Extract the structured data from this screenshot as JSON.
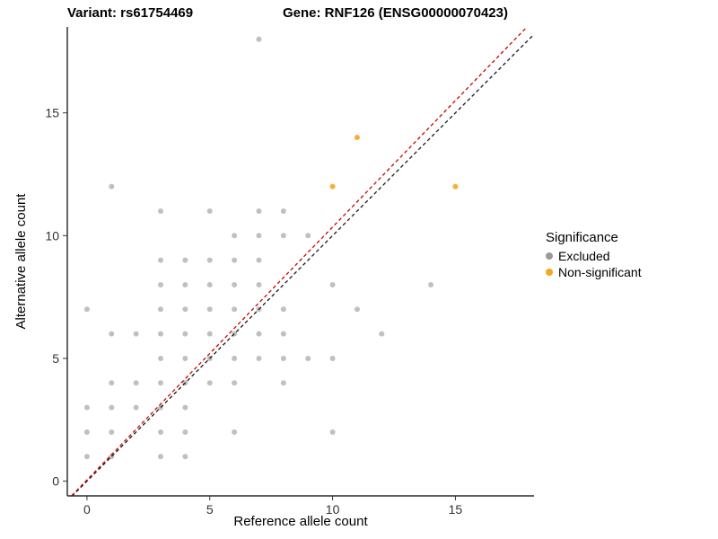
{
  "titles": {
    "variant": "Variant: rs61754469",
    "gene": "Gene: RNF126 (ENSG00000070423)"
  },
  "chart_data": {
    "type": "scatter",
    "xlabel": "Reference allele count",
    "ylabel": "Alternative allele count",
    "xlim": [
      -0.8,
      18.2
    ],
    "ylim": [
      -0.6,
      18.5
    ],
    "xticks": [
      0,
      5,
      10,
      15
    ],
    "yticks": [
      0,
      5,
      10,
      15
    ],
    "grid": false,
    "legend": {
      "title": "Significance",
      "position": "right",
      "entries": [
        {
          "label": "Excluded",
          "color": "#999999"
        },
        {
          "label": "Non-significant",
          "color": "#F5A623"
        }
      ]
    },
    "series": [
      {
        "name": "Excluded",
        "color": "#8c8c8c",
        "opacity": 0.55,
        "points": [
          [
            0,
            1
          ],
          [
            0,
            2
          ],
          [
            0,
            3
          ],
          [
            0,
            7
          ],
          [
            1,
            1
          ],
          [
            1,
            2
          ],
          [
            1,
            3
          ],
          [
            1,
            4
          ],
          [
            1,
            6
          ],
          [
            1,
            12
          ],
          [
            2,
            3
          ],
          [
            2,
            4
          ],
          [
            2,
            6
          ],
          [
            3,
            1
          ],
          [
            3,
            2
          ],
          [
            3,
            3
          ],
          [
            3,
            4
          ],
          [
            3,
            5
          ],
          [
            3,
            6
          ],
          [
            3,
            7
          ],
          [
            3,
            8
          ],
          [
            3,
            9
          ],
          [
            3,
            11
          ],
          [
            4,
            1
          ],
          [
            4,
            2
          ],
          [
            4,
            3
          ],
          [
            4,
            4
          ],
          [
            4,
            5
          ],
          [
            4,
            6
          ],
          [
            4,
            7
          ],
          [
            4,
            8
          ],
          [
            4,
            9
          ],
          [
            5,
            4
          ],
          [
            5,
            5
          ],
          [
            5,
            6
          ],
          [
            5,
            7
          ],
          [
            5,
            8
          ],
          [
            5,
            9
          ],
          [
            5,
            11
          ],
          [
            6,
            2
          ],
          [
            6,
            4
          ],
          [
            6,
            5
          ],
          [
            6,
            6
          ],
          [
            6,
            7
          ],
          [
            6,
            8
          ],
          [
            6,
            9
          ],
          [
            6,
            10
          ],
          [
            7,
            5
          ],
          [
            7,
            6
          ],
          [
            7,
            7
          ],
          [
            7,
            8
          ],
          [
            7,
            9
          ],
          [
            7,
            10
          ],
          [
            7,
            11
          ],
          [
            7,
            18
          ],
          [
            8,
            4
          ],
          [
            8,
            5
          ],
          [
            8,
            6
          ],
          [
            8,
            7
          ],
          [
            8,
            10
          ],
          [
            8,
            11
          ],
          [
            9,
            5
          ],
          [
            9,
            10
          ],
          [
            10,
            2
          ],
          [
            10,
            5
          ],
          [
            10,
            8
          ],
          [
            11,
            7
          ],
          [
            12,
            6
          ],
          [
            14,
            8
          ]
        ]
      },
      {
        "name": "Non-significant",
        "color": "#F5A623",
        "opacity": 0.9,
        "points": [
          [
            10,
            12
          ],
          [
            11,
            14
          ],
          [
            15,
            12
          ]
        ]
      }
    ],
    "lines": [
      {
        "name": "identity",
        "color": "#1a1a1a",
        "slope": 1.0,
        "intercept": 0.0,
        "dash": "4 3"
      },
      {
        "name": "regression",
        "color": "#CC0000",
        "slope": 1.03,
        "intercept": 0.05,
        "dash": "4 3"
      }
    ]
  }
}
